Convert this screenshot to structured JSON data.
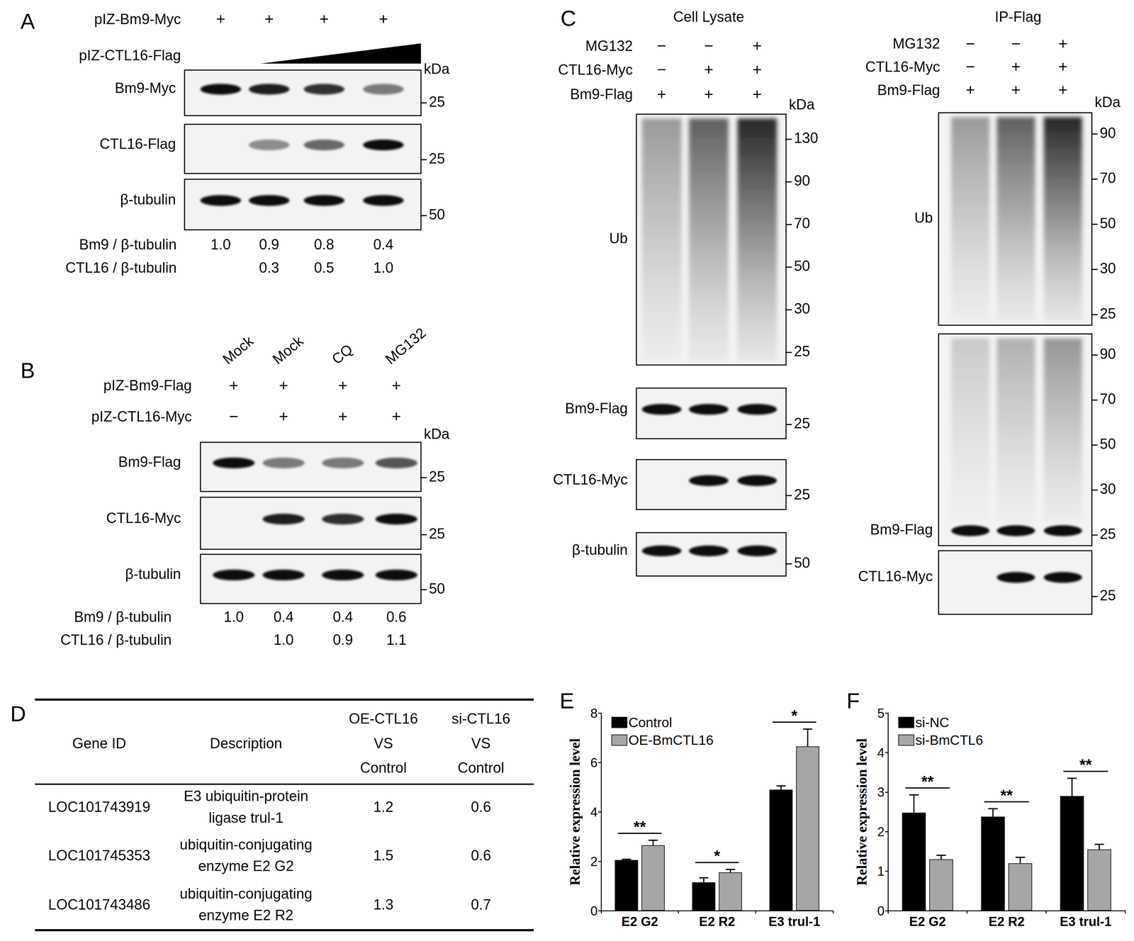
{
  "panels": {
    "A": {
      "letter": "A",
      "conditions": [
        {
          "label": "pIZ-Bm9-Myc",
          "marks": [
            "+",
            "+",
            "+",
            "+"
          ]
        },
        {
          "label": "pIZ-CTL16-Flag",
          "wedge": true
        }
      ],
      "unit": "kDa",
      "blots": [
        {
          "label": "Bm9-Myc",
          "kind": "band",
          "markers": [
            25
          ]
        },
        {
          "label": "CTL16-Flag",
          "kind": "band",
          "markers": [
            25
          ]
        },
        {
          "label": "β-tubulin",
          "kind": "band",
          "markers": [
            50
          ]
        }
      ],
      "quantification": [
        {
          "label": "Bm9 / β-tubulin",
          "values": [
            "1.0",
            "0.9",
            "0.8",
            "0.4"
          ]
        },
        {
          "label": "CTL16 / β-tubulin",
          "values": [
            null,
            "0.3",
            "0.5",
            "1.0"
          ]
        }
      ]
    },
    "B": {
      "letter": "B",
      "lane_labels": [
        "Mock",
        "Mock",
        "CQ",
        "MG132"
      ],
      "conditions": [
        {
          "label": "pIZ-Bm9-Flag",
          "marks": [
            "+",
            "+",
            "+",
            "+"
          ]
        },
        {
          "label": "pIZ-CTL16-Myc",
          "marks": [
            "−",
            "+",
            "+",
            "+"
          ]
        }
      ],
      "unit": "kDa",
      "blots": [
        {
          "label": "Bm9-Flag",
          "kind": "band",
          "markers": [
            25
          ]
        },
        {
          "label": "CTL16-Myc",
          "kind": "band",
          "markers": [
            25
          ]
        },
        {
          "label": "β-tubulin",
          "kind": "band",
          "markers": [
            50
          ]
        }
      ],
      "quantification": [
        {
          "label": "Bm9 / β-tubulin",
          "values": [
            "1.0",
            "0.4",
            "0.4",
            "0.6"
          ]
        },
        {
          "label": "CTL16 / β-tubulin",
          "values": [
            null,
            "1.0",
            "0.9",
            "1.1"
          ]
        }
      ]
    },
    "C": {
      "letter": "C",
      "subpanels": [
        {
          "title": "Cell Lysate",
          "conditions": [
            {
              "label": "MG132",
              "marks": [
                "−",
                "−",
                "+"
              ]
            },
            {
              "label": "CTL16-Myc",
              "marks": [
                "−",
                "+",
                "+"
              ]
            },
            {
              "label": "Bm9-Flag",
              "marks": [
                "+",
                "+",
                "+"
              ]
            }
          ],
          "unit": "kDa",
          "blots": [
            {
              "label": "Ub",
              "kind": "smear",
              "markers": [
                130,
                90,
                70,
                50,
                30,
                25
              ]
            },
            {
              "label": "Bm9-Flag",
              "kind": "band",
              "markers": [
                25
              ]
            },
            {
              "label": "CTL16-Myc",
              "kind": "band",
              "markers": [
                25
              ]
            },
            {
              "label": "β-tubulin",
              "kind": "band",
              "markers": [
                50
              ]
            }
          ]
        },
        {
          "title": "IP-Flag",
          "conditions": [
            {
              "label": "MG132",
              "marks": [
                "−",
                "−",
                "+"
              ]
            },
            {
              "label": "CTL16-Myc",
              "marks": [
                "−",
                "+",
                "+"
              ]
            },
            {
              "label": "Bm9-Flag",
              "marks": [
                "+",
                "+",
                "+"
              ]
            }
          ],
          "unit": "kDa",
          "blots": [
            {
              "label": "Ub",
              "kind": "smear",
              "markers": [
                90,
                70,
                50,
                30,
                25
              ]
            },
            {
              "label": "Bm9-Flag",
              "kind": "band_smear",
              "markers": [
                90,
                70,
                50,
                30,
                25
              ]
            },
            {
              "label": "CTL16-Myc",
              "kind": "band",
              "markers": [
                25
              ]
            }
          ]
        }
      ]
    },
    "D": {
      "letter": "D",
      "table": {
        "header": [
          "Gene ID",
          "Description",
          "OE-CTL16 VS Control",
          "si-CTL16 VS Control"
        ],
        "rows": [
          [
            "LOC101743919",
            "E3 ubiquitin-protein ligase trul-1",
            1.2,
            0.6
          ],
          [
            "LOC101745353",
            "ubiquitin-conjugating enzyme E2 G2",
            1.5,
            0.6
          ],
          [
            "LOC101743486",
            "ubiquitin-conjugating enzyme E2 R2",
            1.3,
            0.7
          ]
        ]
      }
    }
  },
  "chart_data": [
    {
      "type": "bar",
      "title": "E",
      "categories": [
        "E2 G2",
        "E2 R2",
        "E3 trul-1"
      ],
      "series": [
        {
          "name": "Control",
          "color": "#000000",
          "values": [
            2.05,
            1.15,
            4.9
          ],
          "errors": [
            0.03,
            0.18,
            0.15
          ]
        },
        {
          "name": "OE-BmCTL16",
          "color": "#a6a6a6",
          "values": [
            2.65,
            1.55,
            6.65
          ],
          "errors": [
            0.2,
            0.12,
            0.7
          ]
        }
      ],
      "ylabel": "Relative expression level",
      "ylim": [
        0,
        8
      ],
      "yticks": [
        0,
        2,
        4,
        6,
        8
      ],
      "grid": false,
      "legend": "top-left",
      "annotations": [
        "**",
        "*",
        "*"
      ]
    },
    {
      "type": "bar",
      "title": "F",
      "categories": [
        "E2 G2",
        "E2 R2",
        "E3 trul-1"
      ],
      "series": [
        {
          "name": "si-NC",
          "color": "#000000",
          "values": [
            2.48,
            2.38,
            2.9
          ],
          "errors": [
            0.45,
            0.2,
            0.45
          ]
        },
        {
          "name": "si-BmCTL6",
          "color": "#a6a6a6",
          "values": [
            1.3,
            1.2,
            1.55
          ],
          "errors": [
            0.1,
            0.15,
            0.13
          ]
        }
      ],
      "ylabel": "Relative expression level",
      "ylim": [
        0,
        5
      ],
      "yticks": [
        0,
        1,
        2,
        3,
        4,
        5
      ],
      "grid": false,
      "legend": "top-left",
      "annotations": [
        "**",
        "**",
        "**"
      ]
    }
  ]
}
